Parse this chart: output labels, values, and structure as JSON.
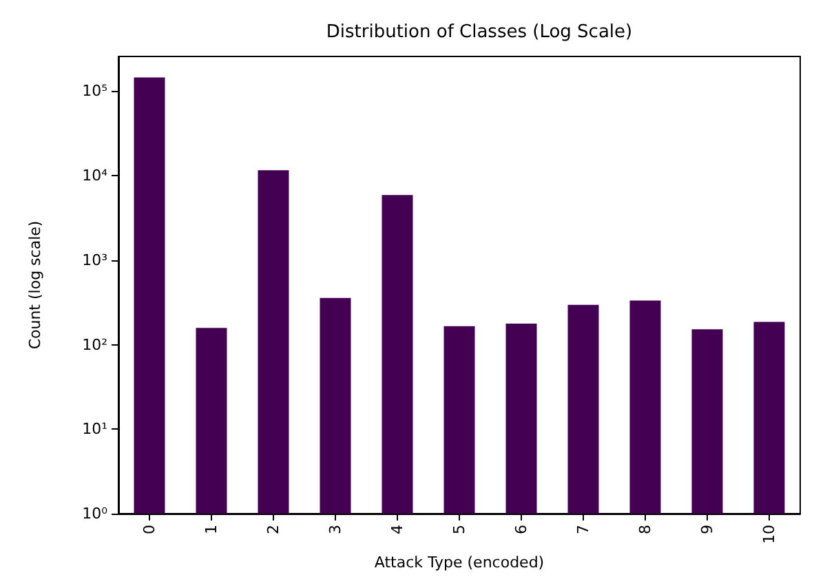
{
  "chart_data": {
    "type": "bar",
    "title": "Distribution of Classes (Log Scale)",
    "xlabel": "Attack Type (encoded)",
    "ylabel": "Count (log scale)",
    "categories": [
      "0",
      "1",
      "2",
      "3",
      "4",
      "5",
      "6",
      "7",
      "8",
      "9",
      "10"
    ],
    "values": [
      145000,
      158,
      11600,
      357,
      5900,
      165,
      177,
      295,
      333,
      152,
      186
    ],
    "color": "#440154",
    "log": true,
    "grid": false,
    "ylim": [
      1,
      257000
    ],
    "yticks": [
      {
        "value": 1,
        "label": "10⁰"
      },
      {
        "value": 10,
        "label": "10¹"
      },
      {
        "value": 100,
        "label": "10²"
      },
      {
        "value": 1000,
        "label": "10³"
      },
      {
        "value": 10000,
        "label": "10⁴"
      },
      {
        "value": 100000,
        "label": "10⁵"
      }
    ]
  }
}
